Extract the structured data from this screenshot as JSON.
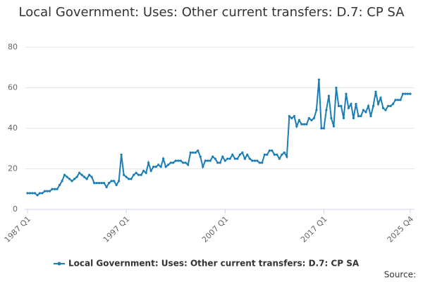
{
  "chart_data": {
    "type": "line",
    "title": "Local Government: Uses: Other current transfers: D.7: CP SA",
    "source": "Source:",
    "categories": [
      "1987 Q1",
      null,
      null,
      null,
      null,
      null,
      null,
      null,
      null,
      null,
      null,
      null,
      null,
      null,
      null,
      null,
      null,
      null,
      null,
      null,
      null,
      null,
      null,
      null,
      null,
      null,
      null,
      null,
      null,
      null,
      null,
      null,
      null,
      null,
      null,
      null,
      null,
      null,
      null,
      null,
      "1997 Q1",
      null,
      null,
      null,
      null,
      null,
      null,
      null,
      null,
      null,
      null,
      null,
      null,
      null,
      null,
      null,
      null,
      null,
      null,
      null,
      null,
      null,
      null,
      null,
      null,
      null,
      null,
      null,
      null,
      null,
      null,
      null,
      null,
      null,
      null,
      null,
      null,
      null,
      null,
      null,
      "2007 Q1",
      null,
      null,
      null,
      null,
      null,
      null,
      null,
      null,
      null,
      null,
      null,
      null,
      null,
      null,
      null,
      null,
      null,
      null,
      null,
      null,
      null,
      null,
      null,
      null,
      null,
      null,
      null,
      null,
      null,
      null,
      null,
      null,
      null,
      null,
      null,
      null,
      null,
      null,
      null,
      "2017 Q1",
      null,
      null,
      null,
      null,
      null,
      null,
      null,
      null,
      null,
      null,
      null,
      null,
      null,
      null,
      null,
      null,
      null,
      null,
      null,
      null,
      null,
      null,
      null,
      null,
      null,
      null,
      null,
      null,
      null,
      null,
      null,
      null,
      null,
      null,
      "2025 Q4"
    ],
    "series": [
      {
        "name": "Local Government: Uses: Other current transfers: D.7: CP SA",
        "color": "#1a7db6",
        "values": [
          8,
          8,
          8,
          8,
          7,
          8,
          8,
          9,
          9,
          9,
          10,
          10,
          10,
          12,
          14,
          17,
          16,
          15,
          14,
          15,
          16,
          18,
          17,
          16,
          15,
          17,
          16,
          13,
          13,
          13,
          13,
          13,
          11,
          13,
          14,
          14,
          12,
          14,
          27,
          17,
          16,
          15,
          15,
          17,
          18,
          17,
          17,
          19,
          18,
          23,
          19,
          21,
          21,
          22,
          21,
          25,
          21,
          22,
          23,
          23,
          24,
          24,
          24,
          23,
          23,
          22,
          28,
          28,
          28,
          29,
          26,
          21,
          24,
          24,
          24,
          26,
          25,
          23,
          23,
          26,
          24,
          25,
          25,
          27,
          25,
          25,
          27,
          28,
          25,
          27,
          25,
          24,
          24,
          24,
          23,
          23,
          27,
          27,
          29,
          29,
          27,
          27,
          25,
          27,
          28,
          26,
          46,
          45,
          46,
          41,
          44,
          42,
          42,
          42,
          45,
          44,
          45,
          49,
          64,
          40,
          40,
          49,
          56,
          45,
          41,
          60,
          51,
          51,
          45,
          57,
          50,
          52,
          45,
          52,
          46,
          46,
          49,
          48,
          51,
          46,
          51,
          58,
          52,
          55,
          50,
          49,
          51,
          51,
          52,
          54,
          54,
          54,
          57,
          57,
          57,
          57
        ]
      }
    ],
    "ylim": [
      0,
      80
    ],
    "yticks": [
      0,
      20,
      40,
      60,
      80
    ],
    "grid": true
  }
}
